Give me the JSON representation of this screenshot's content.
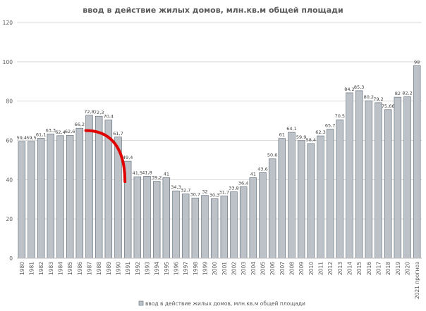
{
  "chart_data": {
    "type": "bar",
    "title": "ввод в действие жилых домов, млн.кв.м общей площади",
    "legend": {
      "label": "ввод в действие жилых домов, млн.кв.м общей площади",
      "placement": "bottom",
      "color": "#bcc2c8"
    },
    "bar_color": "#bcc2c8",
    "bar_border": "#5a6470",
    "annotation_arc_color": "#e00000",
    "grid": true,
    "ylim": [
      0,
      120
    ],
    "yticks": [
      0,
      20,
      40,
      60,
      80,
      100,
      120
    ],
    "categories": [
      "1980",
      "1981",
      "1982",
      "1983",
      "1984",
      "1985",
      "1986",
      "1987",
      "1988",
      "1989",
      "1990",
      "1991",
      "1992",
      "1993",
      "1994",
      "1995",
      "1996",
      "1997",
      "1998",
      "1999",
      "2000",
      "2001",
      "2002",
      "2003",
      "2004",
      "2005",
      "2006",
      "2007",
      "2008",
      "2009",
      "2010",
      "2011",
      "2012",
      "2013",
      "2014",
      "2015",
      "2016",
      "2017",
      "2018",
      "2019",
      "2020",
      "2021 прогноз"
    ],
    "values": [
      59.4,
      59.5,
      61.1,
      63.3,
      62.4,
      62.6,
      66.2,
      72.8,
      72.3,
      70.4,
      61.7,
      49.4,
      41.5,
      41.8,
      39.2,
      41,
      34.3,
      32.7,
      30.7,
      32,
      30.3,
      31.7,
      33.8,
      36.4,
      41,
      43.6,
      50.6,
      61,
      64.1,
      59.9,
      58.4,
      62.3,
      65.7,
      70.5,
      84.2,
      85.3,
      80.2,
      79.2,
      75.66,
      82,
      82.2,
      98
    ],
    "value_labels": [
      "59,4",
      "59,5",
      "61,1",
      "63,3",
      "62,4",
      "62,6",
      "66,2",
      "72,8",
      "72,3",
      "70,4",
      "61,7",
      "49,4",
      "41,5",
      "41,8",
      "39,2",
      "41",
      "34,3",
      "32,7",
      "30,7",
      "32",
      "30,3",
      "31,7",
      "33,8",
      "36,4",
      "41",
      "43,6",
      "50,6",
      "61",
      "64,1",
      "59,9",
      "58,4",
      "62,3",
      "65,7",
      "70,5",
      "84,2",
      "85,3",
      "80,2",
      "79,2",
      "75,66",
      "82",
      "82,2",
      "98"
    ]
  }
}
